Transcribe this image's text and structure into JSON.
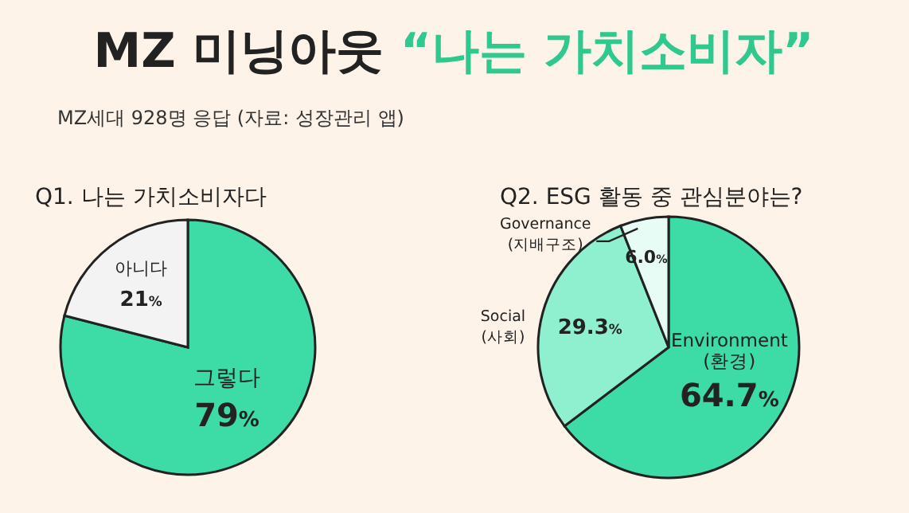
{
  "chart_data": [
    {
      "type": "pie",
      "title": "Q1. 나는 가치소비자다",
      "annotations": [
        "MZ 미닝아웃",
        "“나는 가치소비자”",
        "MZ세대 928명 응답 (자료: 성장관리 앱)"
      ],
      "categories": [
        "그렇다",
        "아니다"
      ],
      "values": [
        79,
        21
      ],
      "value_labels": [
        "79%",
        "21%"
      ],
      "colors": [
        "#3ddba6",
        "#f3f3f3"
      ]
    },
    {
      "type": "pie",
      "title": "Q2. ESG 활동 중 관심분야는?",
      "categories": [
        "Environment\n(환경)",
        "Social\n(사회)",
        "Governance\n(지배구조)"
      ],
      "values": [
        64.7,
        29.3,
        6.0
      ],
      "value_labels": [
        "64.7%",
        "29.3%",
        "6.0%"
      ],
      "colors": [
        "#3ddba6",
        "#8ef0cf",
        "#e6fcf4"
      ]
    }
  ]
}
